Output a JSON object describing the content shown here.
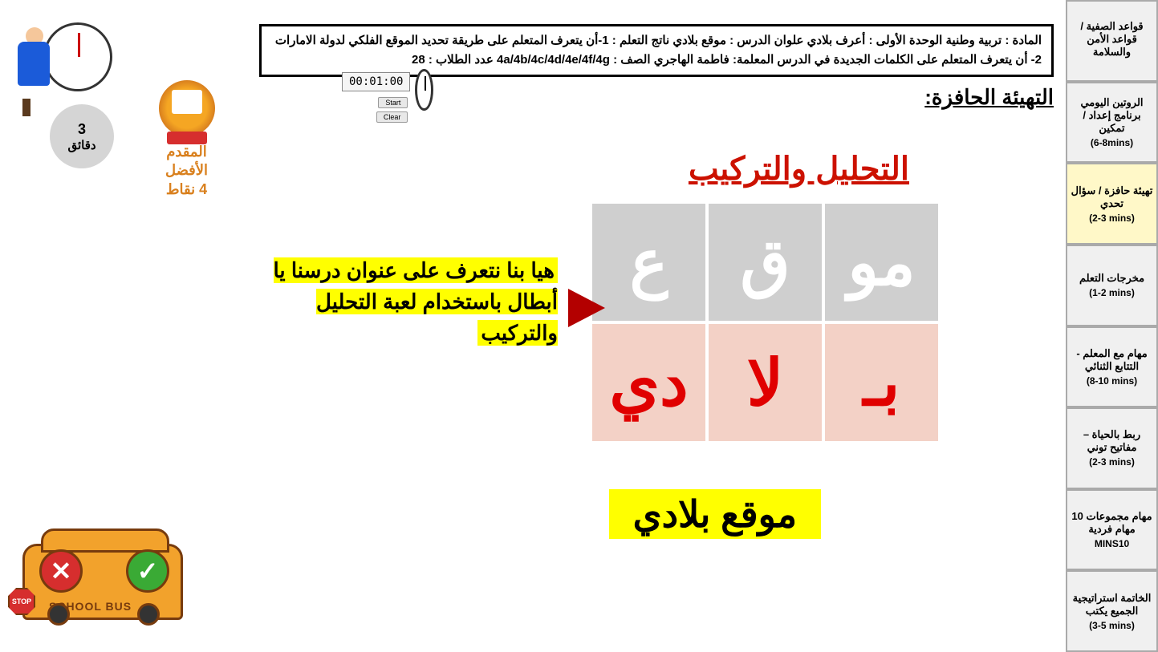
{
  "sidebar": [
    {
      "title": "قواعد الصفية / قواعد الأمن والسلامة",
      "duration": ""
    },
    {
      "title": "الروتين اليومي برنامج إعداد / تمكين",
      "duration": "(6-8mins)"
    },
    {
      "title": "تهيئة حافزة / سؤال تحدي",
      "duration": "(2-3 mins)"
    },
    {
      "title": "مخرجات التعلم",
      "duration": "(1-2 mins)"
    },
    {
      "title": "مهام مع المعلم - التتابع الثنائي",
      "duration": "(8-10 mins)"
    },
    {
      "title": "ربط بالحياة – مفاتيح توني",
      "duration": "(2-3 mins)"
    },
    {
      "title": "مهام مجموعات 10 مهام فردية",
      "duration": "MINS10"
    },
    {
      "title": "الخاتمة استراتيجية الجميع يكتب",
      "duration": "(3-5 mins)"
    }
  ],
  "active_sidebar_index": 2,
  "header": {
    "line1": "المادة : تربية وطنية      الوحدة الأولى : أعرف بلادي      علوان الدرس : موقع بلادي      ناتج التعلم :  1-أن يتعرف المتعلم على طريقة تحديد الموقع الفلكي لدولة الامارات",
    "line2": "2-  أن يتعرف المتعلم على الكلمات الجديدة في الدرس          المعلمة: فاطمة الهاجري          الصف : 4a/4b/4c/4d/4e/4f/4g    عدد الطلاب : 28"
  },
  "section_title": "التهيئة الحافزة:",
  "activity_title": "التحليل والتركيب",
  "grid": {
    "row1": [
      "مو",
      "ق",
      "ع"
    ],
    "row2": [
      "بـ",
      "لا",
      "دي"
    ],
    "colors": {
      "top_bg": "#cfcfcf",
      "top_fg": "#ffffff",
      "bottom_bg": "#f3d1c6",
      "bottom_fg": "#e00000"
    }
  },
  "callout_text": "هيا بنا نتعرف على عنوان درسنا يا أبطال باستخدام لعبة التحليل والتركيب",
  "answer": "موقع بلادي",
  "timer": {
    "display": "00:01:00",
    "btn_start": "Start",
    "btn_clear": "Clear"
  },
  "minutes_badge": {
    "number": "3",
    "unit": "دقائق"
  },
  "badge": {
    "line1": "المقدم",
    "line2": "الأفضل",
    "line3": "4 نقاط"
  },
  "bus": {
    "label": "SCHOOL BUS",
    "stop": "STOP",
    "ok": "✓",
    "no": "✕"
  }
}
